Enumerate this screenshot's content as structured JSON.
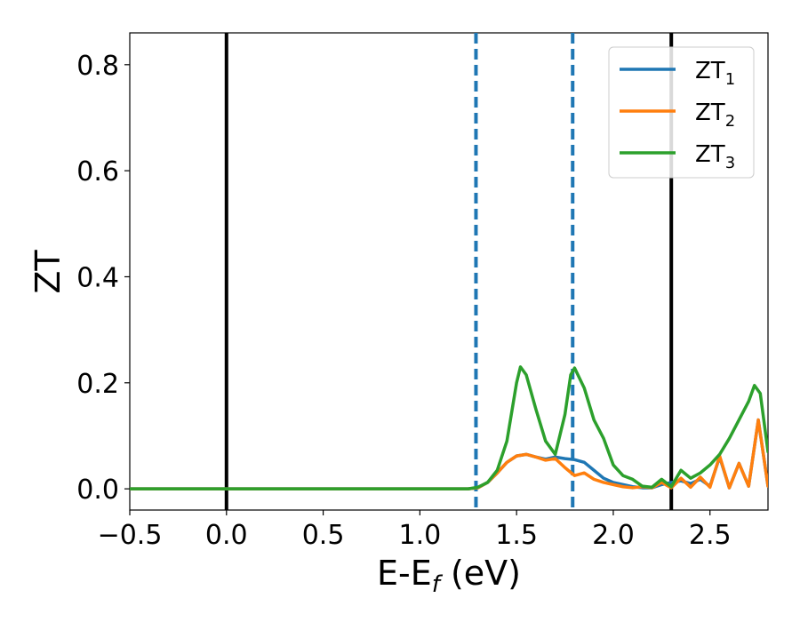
{
  "chart_data": {
    "type": "line",
    "xlabel_main": "E-E",
    "xlabel_sub": "f",
    "xlabel_unit": " (eV)",
    "ylabel": "ZT",
    "xlim": [
      -0.5,
      2.8
    ],
    "ylim": [
      -0.04,
      0.86
    ],
    "xticks": [
      -0.5,
      0.0,
      0.5,
      1.0,
      1.5,
      2.0,
      2.5
    ],
    "xtick_labels": [
      "−0.5",
      "0.0",
      "0.5",
      "1.0",
      "1.5",
      "2.0",
      "2.5"
    ],
    "yticks": [
      0.0,
      0.2,
      0.4,
      0.6,
      0.8
    ],
    "ytick_labels": [
      "0.0",
      "0.2",
      "0.4",
      "0.6",
      "0.8"
    ],
    "grid": false,
    "legend_position": "top-right",
    "vlines": [
      {
        "x": 0.0,
        "style": "solid",
        "color": "#000000"
      },
      {
        "x": 2.3,
        "style": "solid",
        "color": "#000000"
      },
      {
        "x": 1.29,
        "style": "dashed",
        "color": "#1f77b4"
      },
      {
        "x": 1.79,
        "style": "dashed",
        "color": "#1f77b4"
      }
    ],
    "series": [
      {
        "name": "ZT",
        "subscript": "1",
        "color": "#1f77b4",
        "points": [
          [
            -0.5,
            0
          ],
          [
            1.25,
            0
          ],
          [
            1.3,
            0.002
          ],
          [
            1.35,
            0.012
          ],
          [
            1.4,
            0.03
          ],
          [
            1.45,
            0.05
          ],
          [
            1.5,
            0.062
          ],
          [
            1.55,
            0.065
          ],
          [
            1.6,
            0.06
          ],
          [
            1.65,
            0.056
          ],
          [
            1.7,
            0.06
          ],
          [
            1.75,
            0.057
          ],
          [
            1.8,
            0.055
          ],
          [
            1.85,
            0.05
          ],
          [
            1.9,
            0.035
          ],
          [
            1.95,
            0.02
          ],
          [
            2.0,
            0.012
          ],
          [
            2.05,
            0.008
          ],
          [
            2.1,
            0.004
          ],
          [
            2.15,
            0.002
          ],
          [
            2.2,
            0.002
          ],
          [
            2.25,
            0.008
          ],
          [
            2.3,
            0.012
          ],
          [
            2.35,
            0.015
          ],
          [
            2.4,
            0.01
          ],
          [
            2.45,
            0.018
          ],
          [
            2.5,
            0.005
          ],
          [
            2.55,
            0.06
          ],
          [
            2.6,
            0.002
          ],
          [
            2.65,
            0.048
          ],
          [
            2.7,
            0.005
          ],
          [
            2.75,
            0.13
          ],
          [
            2.8,
            0.005
          ]
        ]
      },
      {
        "name": "ZT",
        "subscript": "2",
        "color": "#ff7f0e",
        "points": [
          [
            -0.5,
            0
          ],
          [
            1.25,
            0
          ],
          [
            1.3,
            0.002
          ],
          [
            1.35,
            0.012
          ],
          [
            1.4,
            0.03
          ],
          [
            1.45,
            0.05
          ],
          [
            1.5,
            0.062
          ],
          [
            1.55,
            0.065
          ],
          [
            1.6,
            0.06
          ],
          [
            1.65,
            0.054
          ],
          [
            1.7,
            0.057
          ],
          [
            1.75,
            0.04
          ],
          [
            1.8,
            0.025
          ],
          [
            1.85,
            0.03
          ],
          [
            1.9,
            0.018
          ],
          [
            1.95,
            0.012
          ],
          [
            2.0,
            0.008
          ],
          [
            2.05,
            0.004
          ],
          [
            2.1,
            0.002
          ],
          [
            2.15,
            0.004
          ],
          [
            2.2,
            0.002
          ],
          [
            2.25,
            0.012
          ],
          [
            2.3,
            0.002
          ],
          [
            2.35,
            0.02
          ],
          [
            2.4,
            0.003
          ],
          [
            2.45,
            0.022
          ],
          [
            2.5,
            0.003
          ],
          [
            2.55,
            0.062
          ],
          [
            2.6,
            0.002
          ],
          [
            2.65,
            0.048
          ],
          [
            2.7,
            0.005
          ],
          [
            2.75,
            0.13
          ],
          [
            2.8,
            0.005
          ]
        ]
      },
      {
        "name": "ZT",
        "subscript": "3",
        "color": "#2ca02c",
        "points": [
          [
            -0.5,
            0
          ],
          [
            1.25,
            0
          ],
          [
            1.3,
            0.003
          ],
          [
            1.35,
            0.012
          ],
          [
            1.4,
            0.035
          ],
          [
            1.45,
            0.09
          ],
          [
            1.5,
            0.2
          ],
          [
            1.52,
            0.23
          ],
          [
            1.55,
            0.215
          ],
          [
            1.6,
            0.15
          ],
          [
            1.65,
            0.09
          ],
          [
            1.7,
            0.065
          ],
          [
            1.75,
            0.14
          ],
          [
            1.78,
            0.215
          ],
          [
            1.8,
            0.228
          ],
          [
            1.85,
            0.19
          ],
          [
            1.9,
            0.13
          ],
          [
            1.95,
            0.095
          ],
          [
            2.0,
            0.045
          ],
          [
            2.05,
            0.025
          ],
          [
            2.1,
            0.018
          ],
          [
            2.15,
            0.005
          ],
          [
            2.2,
            0.003
          ],
          [
            2.25,
            0.018
          ],
          [
            2.3,
            0.004
          ],
          [
            2.35,
            0.035
          ],
          [
            2.4,
            0.02
          ],
          [
            2.45,
            0.03
          ],
          [
            2.5,
            0.045
          ],
          [
            2.55,
            0.065
          ],
          [
            2.6,
            0.095
          ],
          [
            2.65,
            0.13
          ],
          [
            2.7,
            0.165
          ],
          [
            2.73,
            0.195
          ],
          [
            2.76,
            0.18
          ],
          [
            2.8,
            0.07
          ]
        ]
      }
    ]
  }
}
